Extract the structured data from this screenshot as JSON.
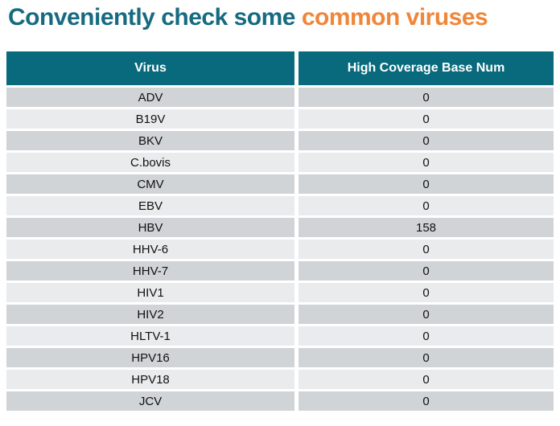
{
  "title": {
    "prefix": "Conveniently check some ",
    "highlight": "common viruses"
  },
  "colors": {
    "title_teal": "#166b80",
    "accent_orange": "#f0863a",
    "header_teal": "#086a7c",
    "row_dark": "#d0d4d6",
    "row_light": "#e9ebec",
    "header_text": "#ffffff",
    "body_text": "#111111",
    "background": "#ffffff"
  },
  "table": {
    "columns": [
      "Virus",
      "High Coverage Base Num"
    ],
    "rows": [
      [
        "ADV",
        "0"
      ],
      [
        "B19V",
        "0"
      ],
      [
        "BKV",
        "0"
      ],
      [
        "C.bovis",
        "0"
      ],
      [
        "CMV",
        "0"
      ],
      [
        "EBV",
        "0"
      ],
      [
        "HBV",
        "158"
      ],
      [
        "HHV-6",
        "0"
      ],
      [
        "HHV-7",
        "0"
      ],
      [
        "HIV1",
        "0"
      ],
      [
        "HIV2",
        "0"
      ],
      [
        "HLTV-1",
        "0"
      ],
      [
        "HPV16",
        "0"
      ],
      [
        "HPV18",
        "0"
      ],
      [
        "JCV",
        "0"
      ]
    ]
  }
}
